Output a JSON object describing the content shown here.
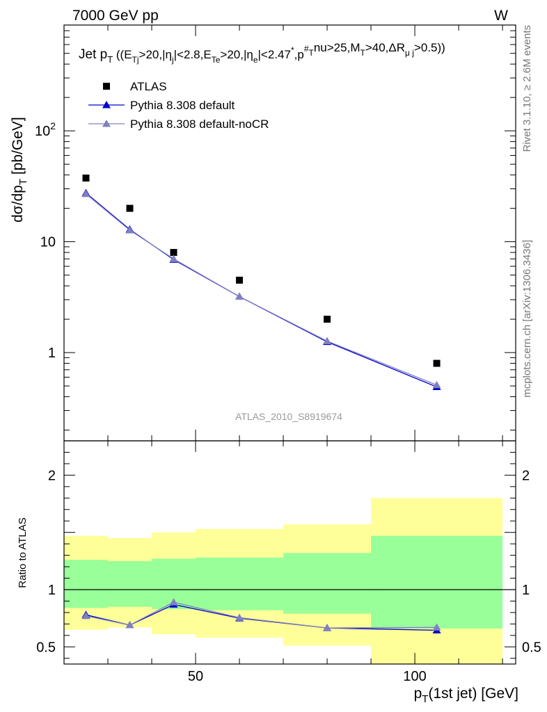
{
  "header": {
    "energy_label": "7000 GeV pp",
    "process_label": "W"
  },
  "side_labels": {
    "rivet": "Rivet 3.1.10, ≥ 2.6M events",
    "mcplots": "mcplots.cern.ch [arXiv:1306.3436]"
  },
  "watermark": "ATLAS_2010_S8919674",
  "chart_data": [
    {
      "type": "scatter",
      "panel": "main",
      "title": "Jet pT ((ETj>20,|ηj|<2.8,ETe>20,|ηe|<2.47*,pT#nu>25,MT>40,ΔRμj>0.5))",
      "xlabel": "pT(1st jet) [GeV]",
      "ylabel": "dσ/dpT [pb/GeV]",
      "xlim": [
        20,
        123
      ],
      "ylim": [
        0.16,
        900
      ],
      "yscale": "log",
      "y_tick_labels": [
        "1",
        "10",
        "10^2"
      ],
      "legend_position": "top-left",
      "series": [
        {
          "name": "ATLAS",
          "marker": "square",
          "color": "#000000",
          "x": [
            25,
            35,
            45,
            60,
            80,
            105
          ],
          "y": [
            37.5,
            20.0,
            8.0,
            4.5,
            2.0,
            0.8
          ]
        },
        {
          "name": "Pythia 8.308 default",
          "marker": "triangle",
          "color": "#0000cc",
          "x": [
            25,
            35,
            45,
            60,
            80,
            105
          ],
          "y": [
            27.5,
            12.9,
            6.9,
            3.2,
            1.25,
            0.49
          ]
        },
        {
          "name": "Pythia 8.308 default-noCR",
          "marker": "triangle",
          "color": "#8080c0",
          "x": [
            25,
            35,
            45,
            60,
            80,
            105
          ],
          "y": [
            27.0,
            12.7,
            7.0,
            3.2,
            1.27,
            0.51
          ]
        }
      ]
    },
    {
      "type": "line",
      "panel": "ratio",
      "ylabel": "Ratio to ATLAS",
      "xlim": [
        20,
        123
      ],
      "ylim": [
        0.35,
        2.3
      ],
      "x_tick_labels": [
        "50",
        "100"
      ],
      "y_tick_labels": [
        "0.5",
        "1",
        "2"
      ],
      "reference_line": 1.0,
      "bands": [
        {
          "x_lo": 20,
          "x_hi": 30,
          "yellow": [
            0.65,
            1.47
          ],
          "green": [
            0.84,
            1.26
          ]
        },
        {
          "x_lo": 30,
          "x_hi": 40,
          "yellow": [
            0.67,
            1.45
          ],
          "green": [
            0.85,
            1.25
          ]
        },
        {
          "x_lo": 40,
          "x_hi": 50,
          "yellow": [
            0.61,
            1.5
          ],
          "green": [
            0.83,
            1.27
          ]
        },
        {
          "x_lo": 50,
          "x_hi": 70,
          "yellow": [
            0.58,
            1.53
          ],
          "green": [
            0.82,
            1.28
          ]
        },
        {
          "x_lo": 70,
          "x_hi": 90,
          "yellow": [
            0.51,
            1.57
          ],
          "green": [
            0.79,
            1.32
          ]
        },
        {
          "x_lo": 90,
          "x_hi": 120,
          "yellow": [
            0.33,
            1.8
          ],
          "green": [
            0.66,
            1.47
          ]
        }
      ],
      "colors": {
        "yellow": "#ffff99",
        "green": "#99ff99"
      },
      "series": [
        {
          "name": "Pythia 8.308 default",
          "color": "#0000cc",
          "x": [
            25,
            35,
            45,
            60,
            80,
            105
          ],
          "y": [
            0.78,
            0.69,
            0.87,
            0.75,
            0.665,
            0.645
          ]
        },
        {
          "name": "Pythia 8.308 default-noCR",
          "color": "#8080c0",
          "x": [
            25,
            35,
            45,
            60,
            80,
            105
          ],
          "y": [
            0.77,
            0.69,
            0.89,
            0.755,
            0.665,
            0.67
          ]
        }
      ]
    }
  ]
}
